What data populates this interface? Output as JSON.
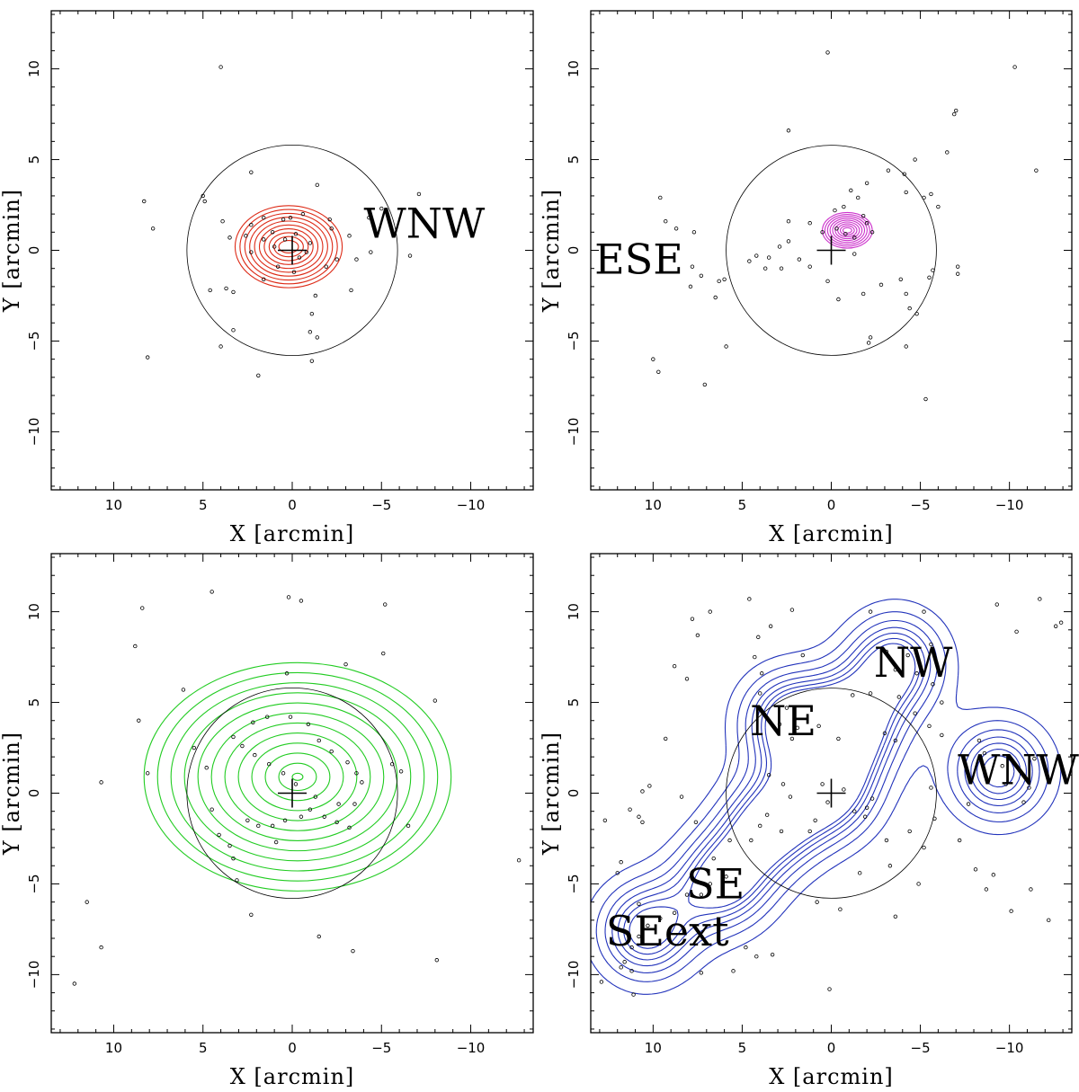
{
  "chart_data": [
    {
      "type": "scatter",
      "xlabel": "X [arcmin]",
      "ylabel": "Y [arcmin]",
      "xlim": [
        13.5,
        -13.5
      ],
      "ylim": [
        -13.2,
        13.2
      ],
      "xticks": [
        10,
        5,
        0,
        -5,
        -10
      ],
      "yticks": [
        10,
        5,
        0,
        -5,
        -10
      ],
      "contour_color": "#dd2a16",
      "circle_radius": 5.9,
      "center_cross": [
        0,
        0
      ],
      "region_labels": [
        {
          "text": "WNW",
          "x": -7.4,
          "y": 1.3
        }
      ],
      "contours": {
        "type": "nested",
        "center": [
          0.2,
          0.2
        ],
        "rx": [
          0.55,
          3.0
        ],
        "ry": [
          0.35,
          2.3
        ],
        "n": 10
      },
      "points": [
        [
          4,
          10.1
        ],
        [
          8.3,
          2.7
        ],
        [
          7.8,
          1.2
        ],
        [
          8.1,
          -5.9
        ],
        [
          5,
          3
        ],
        [
          4.9,
          2.7
        ],
        [
          3.9,
          1.6
        ],
        [
          3.5,
          0.7
        ],
        [
          2.3,
          1.4
        ],
        [
          1.6,
          1.8
        ],
        [
          1.1,
          1.0
        ],
        [
          0.5,
          1.7
        ],
        [
          0.1,
          1.8
        ],
        [
          -0.6,
          2.0
        ],
        [
          -1.4,
          3.6
        ],
        [
          -2.1,
          1.7
        ],
        [
          -2.2,
          1.2
        ],
        [
          -3.2,
          0.8
        ],
        [
          -3.6,
          -0.5
        ],
        [
          -4.4,
          -0.1
        ],
        [
          -3.3,
          -2.2
        ],
        [
          -4.3,
          1.8
        ],
        [
          -1.3,
          -2.5
        ],
        [
          -1.1,
          -3.5
        ],
        [
          -1.0,
          -4.5
        ],
        [
          -1.4,
          -4.8
        ],
        [
          -1.1,
          -6.1
        ],
        [
          1.9,
          -6.9
        ],
        [
          4.0,
          -5.3
        ],
        [
          3.7,
          -2.1
        ],
        [
          3.3,
          -2.3
        ],
        [
          4.6,
          -2.2
        ],
        [
          1.6,
          -1.6
        ],
        [
          0.8,
          -0.9
        ],
        [
          -0.1,
          -1.2
        ],
        [
          -0.4,
          -0.4
        ],
        [
          -0.8,
          -0.1
        ],
        [
          -1.0,
          0.4
        ],
        [
          1.0,
          0.2
        ],
        [
          1.6,
          0.6
        ],
        [
          2.3,
          -0.1
        ],
        [
          2.6,
          0.8
        ],
        [
          -2.5,
          -0.5
        ],
        [
          -1.9,
          -0.9
        ],
        [
          0.4,
          0.6
        ],
        [
          -0.2,
          0.9
        ],
        [
          3.3,
          -4.4
        ],
        [
          -7.1,
          3.1
        ],
        [
          -6.6,
          -0.3
        ],
        [
          2.3,
          4.3
        ],
        [
          -5.0,
          2.3
        ]
      ]
    },
    {
      "type": "scatter",
      "xlabel": "X [arcmin]",
      "ylabel": "Y [arcmin]",
      "xlim": [
        13.5,
        -13.5
      ],
      "ylim": [
        -13.2,
        13.2
      ],
      "xticks": [
        10,
        5,
        0,
        -5,
        -10
      ],
      "yticks": [
        10,
        5,
        0,
        -5,
        -10
      ],
      "contour_color": "#cc33cc",
      "circle_radius": 5.9,
      "center_cross": [
        0,
        0
      ],
      "region_labels": [
        {
          "text": "ESE",
          "x": 10.8,
          "y": -0.7
        }
      ],
      "contours": {
        "type": "nested",
        "center": [
          -0.9,
          1.1
        ],
        "rx": [
          0.25,
          1.4
        ],
        "ry": [
          0.15,
          1.0
        ],
        "n": 9
      },
      "points": [
        [
          -10.3,
          10.1
        ],
        [
          -11.5,
          4.4
        ],
        [
          0.2,
          10.9
        ],
        [
          -7.0,
          7.7
        ],
        [
          -6.9,
          7.5
        ],
        [
          2.4,
          6.6
        ],
        [
          -6.5,
          5.4
        ],
        [
          -4.7,
          5.0
        ],
        [
          -4.1,
          4.2
        ],
        [
          -3.2,
          4.4
        ],
        [
          -5.6,
          3.1
        ],
        [
          -5.2,
          2.9
        ],
        [
          -6.0,
          2.4
        ],
        [
          -2.0,
          3.7
        ],
        [
          -1.1,
          3.3
        ],
        [
          -0.7,
          2.4
        ],
        [
          -0.2,
          2.2
        ],
        [
          -1.5,
          2.9
        ],
        [
          -1.8,
          1.9
        ],
        [
          -2.0,
          1.5
        ],
        [
          -2.3,
          1.0
        ],
        [
          -1.3,
          0.7
        ],
        [
          -0.8,
          0.9
        ],
        [
          -0.3,
          1.2
        ],
        [
          0.5,
          1.0
        ],
        [
          1.2,
          1.5
        ],
        [
          2.4,
          1.6
        ],
        [
          2.4,
          0.5
        ],
        [
          2.9,
          0.2
        ],
        [
          3.5,
          -0.4
        ],
        [
          4.2,
          -0.3
        ],
        [
          4.6,
          -0.6
        ],
        [
          3.7,
          -1.0
        ],
        [
          2.8,
          -1.0
        ],
        [
          1.8,
          -0.5
        ],
        [
          1.2,
          -0.9
        ],
        [
          0.2,
          -1.7
        ],
        [
          -0.4,
          -2.7
        ],
        [
          -1.8,
          -2.4
        ],
        [
          -2.8,
          -1.9
        ],
        [
          -3.9,
          -1.6
        ],
        [
          -4.2,
          -2.4
        ],
        [
          -4.4,
          -3.2
        ],
        [
          -4.8,
          -3.5
        ],
        [
          -4.2,
          -5.3
        ],
        [
          -2.1,
          -5.1
        ],
        [
          -2.2,
          -4.8
        ],
        [
          -5.5,
          -1.5
        ],
        [
          -5.7,
          -1.1
        ],
        [
          -7.1,
          -0.9
        ],
        [
          -7.1,
          -1.3
        ],
        [
          6.3,
          -1.7
        ],
        [
          6.0,
          -1.6
        ],
        [
          6.5,
          -2.6
        ],
        [
          5.9,
          -5.3
        ],
        [
          7.8,
          -0.9
        ],
        [
          7.3,
          -1.4
        ],
        [
          7.9,
          -2.0
        ],
        [
          7.7,
          1.0
        ],
        [
          8.7,
          1.2
        ],
        [
          9.3,
          1.6
        ],
        [
          9.6,
          2.9
        ],
        [
          9.7,
          -6.7
        ],
        [
          10.0,
          -6.0
        ],
        [
          7.1,
          -7.4
        ],
        [
          -5.3,
          -8.2
        ],
        [
          -4.2,
          3.2
        ],
        [
          -1.3,
          -0.2
        ]
      ]
    },
    {
      "type": "scatter",
      "xlabel": "X [arcmin]",
      "ylabel": "Y [arcmin]",
      "xlim": [
        13.5,
        -13.5
      ],
      "ylim": [
        -13.2,
        13.2
      ],
      "xticks": [
        10,
        5,
        0,
        -5,
        -10
      ],
      "yticks": [
        10,
        5,
        0,
        -5,
        -10
      ],
      "contour_color": "#22cc22",
      "circle_radius": 5.9,
      "center_cross": [
        0,
        0
      ],
      "region_labels": [],
      "contours": {
        "type": "nested",
        "center": [
          -0.3,
          0.9
        ],
        "rx": [
          0.3,
          8.6
        ],
        "ry": [
          0.2,
          6.4
        ],
        "n": 12
      },
      "points": [
        [
          4.5,
          11.1
        ],
        [
          8.4,
          10.2
        ],
        [
          8.8,
          8.1
        ],
        [
          8.6,
          4.0
        ],
        [
          8.1,
          1.1
        ],
        [
          6.1,
          5.7
        ],
        [
          5.5,
          2.5
        ],
        [
          4.8,
          1.4
        ],
        [
          4.5,
          -0.9
        ],
        [
          4.1,
          -2.3
        ],
        [
          3.5,
          -2.9
        ],
        [
          3.3,
          -3.6
        ],
        [
          10.7,
          0.6
        ],
        [
          11.5,
          -6.0
        ],
        [
          10.7,
          -8.5
        ],
        [
          12.2,
          -10.5
        ],
        [
          2.3,
          -6.7
        ],
        [
          3.1,
          -4.8
        ],
        [
          1.9,
          -1.8
        ],
        [
          1.1,
          -1.8
        ],
        [
          0.4,
          -1.5
        ],
        [
          -0.5,
          -1.3
        ],
        [
          -1.0,
          -0.9
        ],
        [
          -1.8,
          -1.3
        ],
        [
          -2.5,
          -1.6
        ],
        [
          -3.2,
          -1.9
        ],
        [
          -3.5,
          -0.6
        ],
        [
          -2.6,
          -0.6
        ],
        [
          -1.3,
          -0.2
        ],
        [
          -0.2,
          0.5
        ],
        [
          0.5,
          1.1
        ],
        [
          1.3,
          1.6
        ],
        [
          2.1,
          2.1
        ],
        [
          2.8,
          2.6
        ],
        [
          3.3,
          3.1
        ],
        [
          2.2,
          3.9
        ],
        [
          1.4,
          4.2
        ],
        [
          0.1,
          4.2
        ],
        [
          -0.9,
          3.8
        ],
        [
          -1.5,
          2.9
        ],
        [
          -2.2,
          2.3
        ],
        [
          -3.1,
          1.7
        ],
        [
          -3.6,
          1.1
        ],
        [
          -3.9,
          0.6
        ],
        [
          -5.1,
          7.7
        ],
        [
          -5.6,
          1.6
        ],
        [
          -6.1,
          1.2
        ],
        [
          -6.5,
          -1.8
        ],
        [
          -8.0,
          5.1
        ],
        [
          -3.0,
          7.1
        ],
        [
          0.3,
          6.6
        ],
        [
          0.2,
          10.8
        ],
        [
          -0.5,
          10.6
        ],
        [
          -5.2,
          10.4
        ],
        [
          -1.5,
          -7.9
        ],
        [
          -3.4,
          -8.7
        ],
        [
          -8.1,
          -9.2
        ],
        [
          -12.7,
          -3.7
        ],
        [
          2.5,
          -1.5
        ],
        [
          0.9,
          -2.7
        ]
      ]
    },
    {
      "type": "scatter",
      "xlabel": "X [arcmin]",
      "ylabel": "Y [arcmin]",
      "xlim": [
        13.5,
        -13.5
      ],
      "ylim": [
        -13.2,
        13.2
      ],
      "xticks": [
        10,
        5,
        0,
        -5,
        -10
      ],
      "yticks": [
        10,
        5,
        0,
        -5,
        -10
      ],
      "contour_color": "#2233bb",
      "circle_radius": 5.9,
      "center_cross": [
        0,
        0
      ],
      "region_labels": [
        {
          "text": "NW",
          "x": -4.6,
          "y": 7.0
        },
        {
          "text": "NE",
          "x": 2.7,
          "y": 3.8
        },
        {
          "text": "WNW",
          "x": -10.5,
          "y": 1.1
        },
        {
          "text": "SE",
          "x": 6.5,
          "y": -5.2
        },
        {
          "text": "SEext",
          "x": 9.2,
          "y": -7.8
        }
      ],
      "contours": {
        "type": "blobs",
        "peaks": [
          [
            -3.6,
            7.2
          ],
          [
            2.4,
            4.0
          ],
          [
            -9.4,
            1.2
          ],
          [
            0.1,
            0.1
          ],
          [
            3.5,
            -1.8
          ],
          [
            6.1,
            -4.9
          ],
          [
            10.4,
            -7.6
          ],
          [
            -1.2,
            3.7
          ]
        ]
      },
      "points": [
        [
          -12.6,
          9.2
        ],
        [
          7.8,
          9.6
        ],
        [
          6.8,
          10.0
        ],
        [
          4.6,
          10.7
        ],
        [
          2.2,
          10.1
        ],
        [
          -2.2,
          10.0
        ],
        [
          -5.2,
          10.0
        ],
        [
          -9.3,
          10.4
        ],
        [
          -10.4,
          8.9
        ],
        [
          -11.7,
          10.7
        ],
        [
          3.4,
          9.2
        ],
        [
          4.1,
          8.6
        ],
        [
          4.3,
          7.5
        ],
        [
          3.9,
          6.6
        ],
        [
          1.6,
          7.6
        ],
        [
          -3.1,
          7.8
        ],
        [
          -4.3,
          7.6
        ],
        [
          -4.8,
          6.6
        ],
        [
          -3.6,
          6.8
        ],
        [
          -5.6,
          8.2
        ],
        [
          -1.2,
          5.4
        ],
        [
          -3.8,
          5.3
        ],
        [
          -6.2,
          5.0
        ],
        [
          8.8,
          7.0
        ],
        [
          8.1,
          6.3
        ],
        [
          9.3,
          3.0
        ],
        [
          2.5,
          4.7
        ],
        [
          2.9,
          3.8
        ],
        [
          1.9,
          3.6
        ],
        [
          2.2,
          3.0
        ],
        [
          0.7,
          3.7
        ],
        [
          -0.4,
          3.0
        ],
        [
          -3.0,
          3.3
        ],
        [
          -3.6,
          2.9
        ],
        [
          -5.5,
          3.7
        ],
        [
          -6.2,
          3.2
        ],
        [
          -8.3,
          2.9
        ],
        [
          -8.6,
          2.2
        ],
        [
          -9.6,
          1.5
        ],
        [
          -9.8,
          0.5
        ],
        [
          -11.1,
          0.3
        ],
        [
          -11.4,
          1.9
        ],
        [
          -10.8,
          -0.5
        ],
        [
          -7.7,
          -0.6
        ],
        [
          -5.6,
          0.3
        ],
        [
          -5.8,
          -1.4
        ],
        [
          -4.4,
          -2.1
        ],
        [
          -3.3,
          -4.0
        ],
        [
          -1.6,
          -4.4
        ],
        [
          -0.5,
          -6.4
        ],
        [
          0.8,
          -6.0
        ],
        [
          -1.3,
          -1.0
        ],
        [
          0.2,
          -0.5
        ],
        [
          0.5,
          0.5
        ],
        [
          -0.7,
          0.2
        ],
        [
          0.9,
          -1.5
        ],
        [
          1.2,
          -2.1
        ],
        [
          2.8,
          -2.1
        ],
        [
          3.6,
          -1.2
        ],
        [
          4.0,
          -1.8
        ],
        [
          4.5,
          -2.6
        ],
        [
          5.7,
          -2.6
        ],
        [
          6.6,
          -3.6
        ],
        [
          5.9,
          -4.6
        ],
        [
          6.8,
          -5.0
        ],
        [
          7.3,
          -5.6
        ],
        [
          8.1,
          -5.6
        ],
        [
          8.8,
          -6.6
        ],
        [
          9.6,
          -6.9
        ],
        [
          10.3,
          -7.3
        ],
        [
          10.8,
          -7.9
        ],
        [
          11.2,
          -8.5
        ],
        [
          11.6,
          -9.3
        ],
        [
          11.8,
          -9.6
        ],
        [
          11.2,
          -9.8
        ],
        [
          10.8,
          -6.1
        ],
        [
          12.0,
          -4.4
        ],
        [
          11.8,
          -3.8
        ],
        [
          12.7,
          -1.5
        ],
        [
          11.3,
          -0.9
        ],
        [
          10.6,
          0.1
        ],
        [
          10.2,
          0.4
        ],
        [
          10.8,
          -1.3
        ],
        [
          10.6,
          -1.6
        ],
        [
          8.4,
          -0.2
        ],
        [
          7.6,
          -1.6
        ],
        [
          4.2,
          -9.0
        ],
        [
          3.3,
          -8.9
        ],
        [
          4.8,
          -8.5
        ],
        [
          5.5,
          -9.8
        ],
        [
          7.3,
          -9.9
        ],
        [
          12.9,
          -10.4
        ],
        [
          11.1,
          -11.1
        ],
        [
          0.1,
          -10.8
        ],
        [
          -3.6,
          -6.8
        ],
        [
          -4.9,
          -5.0
        ],
        [
          -8.7,
          -5.3
        ],
        [
          -10.1,
          -6.5
        ],
        [
          -11.2,
          -5.3
        ],
        [
          -12.2,
          -7.0
        ],
        [
          -12.9,
          9.4
        ],
        [
          7.5,
          8.7
        ],
        [
          -9.1,
          -4.5
        ],
        [
          -8.1,
          -4.2
        ],
        [
          -7.2,
          -2.6
        ],
        [
          -5.2,
          -3.0
        ],
        [
          -3.1,
          -2.6
        ],
        [
          -4.7,
          4.4
        ],
        [
          -2.2,
          5.5
        ],
        [
          -5.7,
          6.0
        ],
        [
          4.0,
          5.5
        ],
        [
          3.5,
          1.0
        ],
        [
          2.3,
          -0.2
        ],
        [
          2.7,
          0.5
        ],
        [
          -2.3,
          -0.3
        ],
        [
          -1.9,
          -1.3
        ],
        [
          -2.0,
          -0.8
        ]
      ]
    }
  ]
}
